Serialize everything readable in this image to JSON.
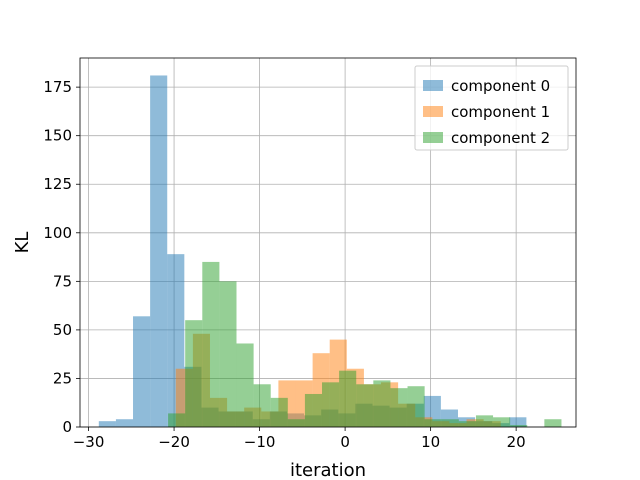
{
  "chart_data": {
    "type": "histogram",
    "xlabel": "iteration",
    "ylabel": "KL",
    "xlim": [
      -31,
      27
    ],
    "ylim": [
      0,
      190
    ],
    "xticks": [
      -30,
      -20,
      -10,
      0,
      10,
      20
    ],
    "yticks": [
      0,
      25,
      50,
      75,
      100,
      125,
      150,
      175
    ],
    "grid": true,
    "legend_position": "top-right",
    "opacity": 0.5,
    "series": [
      {
        "name": "component 0",
        "color": "#1f77b4",
        "bins": [
          {
            "x0": -28.8,
            "x1": -26.8,
            "count": 3
          },
          {
            "x0": -26.8,
            "x1": -24.8,
            "count": 4
          },
          {
            "x0": -24.8,
            "x1": -22.8,
            "count": 57
          },
          {
            "x0": -22.8,
            "x1": -20.8,
            "count": 181
          },
          {
            "x0": -20.8,
            "x1": -18.8,
            "count": 89
          },
          {
            "x0": -18.8,
            "x1": -16.8,
            "count": 31
          },
          {
            "x0": -16.8,
            "x1": -14.8,
            "count": 10
          },
          {
            "x0": -14.8,
            "x1": -12.8,
            "count": 8
          },
          {
            "x0": -12.8,
            "x1": -10.8,
            "count": 8
          },
          {
            "x0": -10.8,
            "x1": -8.8,
            "count": 4
          },
          {
            "x0": -8.8,
            "x1": -6.8,
            "count": 8
          },
          {
            "x0": -6.8,
            "x1": -4.8,
            "count": 7
          },
          {
            "x0": -4.8,
            "x1": -2.8,
            "count": 6
          },
          {
            "x0": -2.8,
            "x1": -0.8,
            "count": 9
          },
          {
            "x0": -0.8,
            "x1": 1.2,
            "count": 7
          },
          {
            "x0": 1.2,
            "x1": 3.2,
            "count": 12
          },
          {
            "x0": 3.2,
            "x1": 5.2,
            "count": 11
          },
          {
            "x0": 5.2,
            "x1": 7.2,
            "count": 10
          },
          {
            "x0": 7.2,
            "x1": 9.2,
            "count": 12
          },
          {
            "x0": 9.2,
            "x1": 11.2,
            "count": 16
          },
          {
            "x0": 11.2,
            "x1": 13.2,
            "count": 9
          },
          {
            "x0": 13.2,
            "x1": 15.2,
            "count": 5
          },
          {
            "x0": 15.2,
            "x1": 17.2,
            "count": 3
          },
          {
            "x0": 17.2,
            "x1": 19.2,
            "count": 2
          },
          {
            "x0": 19.2,
            "x1": 21.2,
            "count": 5
          }
        ]
      },
      {
        "name": "component 1",
        "color": "#ff7f0e",
        "bins": [
          {
            "x0": -19.8,
            "x1": -17.8,
            "count": 30
          },
          {
            "x0": -17.8,
            "x1": -15.8,
            "count": 48
          },
          {
            "x0": -15.8,
            "x1": -13.8,
            "count": 15
          },
          {
            "x0": -13.8,
            "x1": -11.8,
            "count": 8
          },
          {
            "x0": -11.8,
            "x1": -9.8,
            "count": 10
          },
          {
            "x0": -9.8,
            "x1": -7.8,
            "count": 8
          },
          {
            "x0": -7.8,
            "x1": -5.8,
            "count": 24
          },
          {
            "x0": -5.8,
            "x1": -3.8,
            "count": 24
          },
          {
            "x0": -3.8,
            "x1": -1.8,
            "count": 38
          },
          {
            "x0": -1.8,
            "x1": 0.2,
            "count": 45
          },
          {
            "x0": 0.2,
            "x1": 2.2,
            "count": 30
          },
          {
            "x0": 2.2,
            "x1": 4.2,
            "count": 22
          },
          {
            "x0": 4.2,
            "x1": 6.2,
            "count": 23
          },
          {
            "x0": 6.2,
            "x1": 8.2,
            "count": 12
          },
          {
            "x0": 8.2,
            "x1": 10.2,
            "count": 5
          },
          {
            "x0": 10.2,
            "x1": 12.2,
            "count": 3
          },
          {
            "x0": 12.2,
            "x1": 14.2,
            "count": 2
          },
          {
            "x0": 14.2,
            "x1": 16.2,
            "count": 4
          },
          {
            "x0": 16.2,
            "x1": 18.2,
            "count": 3
          }
        ]
      },
      {
        "name": "component 2",
        "color": "#2ca02c",
        "bins": [
          {
            "x0": -20.7,
            "x1": -18.7,
            "count": 7
          },
          {
            "x0": -18.7,
            "x1": -16.7,
            "count": 55
          },
          {
            "x0": -16.7,
            "x1": -14.7,
            "count": 85
          },
          {
            "x0": -14.7,
            "x1": -12.7,
            "count": 75
          },
          {
            "x0": -12.7,
            "x1": -10.7,
            "count": 43
          },
          {
            "x0": -10.7,
            "x1": -8.7,
            "count": 22
          },
          {
            "x0": -8.7,
            "x1": -6.7,
            "count": 15
          },
          {
            "x0": -6.7,
            "x1": -4.7,
            "count": 4
          },
          {
            "x0": -4.7,
            "x1": -2.7,
            "count": 17
          },
          {
            "x0": -2.7,
            "x1": -0.7,
            "count": 23
          },
          {
            "x0": -0.7,
            "x1": 1.3,
            "count": 29
          },
          {
            "x0": 1.3,
            "x1": 3.3,
            "count": 22
          },
          {
            "x0": 3.3,
            "x1": 5.3,
            "count": 24
          },
          {
            "x0": 5.3,
            "x1": 7.3,
            "count": 20
          },
          {
            "x0": 7.3,
            "x1": 9.3,
            "count": 21
          },
          {
            "x0": 9.3,
            "x1": 11.3,
            "count": 4
          },
          {
            "x0": 11.3,
            "x1": 13.3,
            "count": 4
          },
          {
            "x0": 13.3,
            "x1": 15.3,
            "count": 3
          },
          {
            "x0": 15.3,
            "x1": 17.3,
            "count": 6
          },
          {
            "x0": 17.3,
            "x1": 19.3,
            "count": 5
          },
          {
            "x0": 19.3,
            "x1": 21.3,
            "count": 1
          },
          {
            "x0": 21.3,
            "x1": 23.3,
            "count": 0
          },
          {
            "x0": 23.3,
            "x1": 25.3,
            "count": 4
          }
        ]
      }
    ]
  }
}
